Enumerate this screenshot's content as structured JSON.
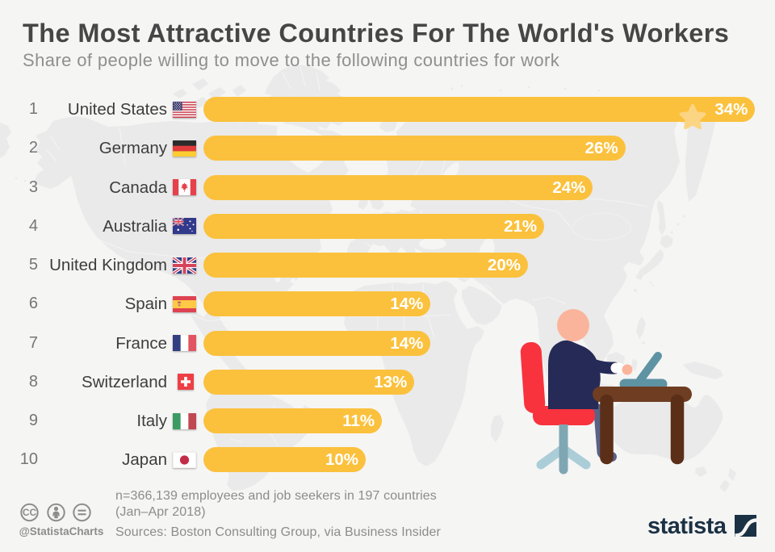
{
  "title": "The Most Attractive Countries For The World's Workers",
  "subtitle": "Share of people willing to move to the following countries for work",
  "chart_data": {
    "type": "bar",
    "orientation": "horizontal",
    "title": "The Most Attractive Countries For The World's Workers",
    "subtitle": "Share of people willing to move to the following countries for work",
    "unit": "percent",
    "xlabel": "",
    "ylabel": "",
    "xlim": [
      0,
      35
    ],
    "grid": false,
    "legend": false,
    "bar_color": "#FBC13D",
    "value_label_color": "#FFFFFF",
    "categories": [
      "United States",
      "Germany",
      "Canada",
      "Australia",
      "United Kingdom",
      "Spain",
      "France",
      "Switzerland",
      "Italy",
      "Japan"
    ],
    "values": [
      34,
      26,
      24,
      21,
      20,
      14,
      14,
      13,
      11,
      10
    ],
    "value_labels": [
      "34%",
      "26%",
      "24%",
      "21%",
      "20%",
      "14%",
      "14%",
      "13%",
      "11%",
      "10%"
    ],
    "highlight": {
      "category": "United States",
      "icon": "star"
    }
  },
  "rows": [
    {
      "rank": "1",
      "country": "United States",
      "flag": "us",
      "square": false,
      "value": 34,
      "label": "34%"
    },
    {
      "rank": "2",
      "country": "Germany",
      "flag": "de",
      "square": false,
      "value": 26,
      "label": "26%"
    },
    {
      "rank": "3",
      "country": "Canada",
      "flag": "ca",
      "square": false,
      "value": 24,
      "label": "24%"
    },
    {
      "rank": "4",
      "country": "Australia",
      "flag": "au",
      "square": false,
      "value": 21,
      "label": "21%"
    },
    {
      "rank": "5",
      "country": "United Kingdom",
      "flag": "gb",
      "square": false,
      "value": 20,
      "label": "20%"
    },
    {
      "rank": "6",
      "country": "Spain",
      "flag": "es",
      "square": false,
      "value": 14,
      "label": "14%"
    },
    {
      "rank": "7",
      "country": "France",
      "flag": "fr",
      "square": false,
      "value": 14,
      "label": "14%"
    },
    {
      "rank": "8",
      "country": "Switzerland",
      "flag": "ch",
      "square": true,
      "value": 13,
      "label": "13%"
    },
    {
      "rank": "9",
      "country": "Italy",
      "flag": "it",
      "square": false,
      "value": 11,
      "label": "11%"
    },
    {
      "rank": "10",
      "country": "Japan",
      "flag": "jp",
      "square": false,
      "value": 10,
      "label": "10%"
    }
  ],
  "footer": {
    "license_icons": [
      "cc-icon",
      "attribution-person-icon",
      "equals-icon"
    ],
    "credit": "@StatistaCharts",
    "note_line1": "n=366,139 employees and job seekers in 197 countries",
    "note_line2": "(Jan–Apr 2018)",
    "sources": "Sources: Boston Consulting Group, via Business Insider",
    "brand": "statista"
  },
  "colors": {
    "background": "#F5F5F4",
    "map_fill": "#E9E9E9",
    "bar": "#FBC13D",
    "star": "#FBD584",
    "title_text": "#484848",
    "subtitle_text": "#8F8F8F",
    "rank_text": "#767676",
    "country_text": "#3D3D3D",
    "footer_text": "#8C8C8C",
    "brand_navy": "#1B3144"
  }
}
